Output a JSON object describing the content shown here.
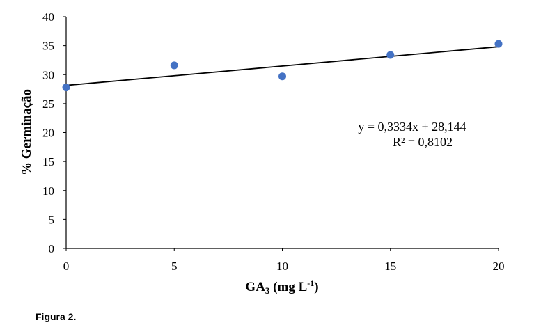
{
  "caption": "Figura 2.",
  "chart_data": {
    "type": "scatter",
    "xlabel": "GA 3 (mg L-1)",
    "xlabel_parts": {
      "main": "GA",
      "sub": "3",
      "unit_open": " (mg L",
      "sup": "-1",
      "unit_close": ")"
    },
    "ylabel": "% Germinação",
    "xlim": [
      0,
      20
    ],
    "ylim": [
      0,
      40
    ],
    "x_ticks": [
      "0",
      "5",
      "10",
      "15",
      "20"
    ],
    "y_ticks": [
      "0",
      "5",
      "10",
      "15",
      "20",
      "25",
      "30",
      "35",
      "40"
    ],
    "grid": false,
    "series": [
      {
        "x": [
          0,
          5,
          10,
          15,
          20
        ],
        "y": [
          27.8,
          31.6,
          29.7,
          33.4,
          35.3
        ],
        "color": "#4472C4"
      }
    ],
    "trendline": {
      "type": "linear",
      "slope": 0.3334,
      "intercept": 28.144,
      "color": "#000000",
      "equation": "y = 0,3334x + 28,144",
      "r2": "R² = 0,8102"
    }
  }
}
